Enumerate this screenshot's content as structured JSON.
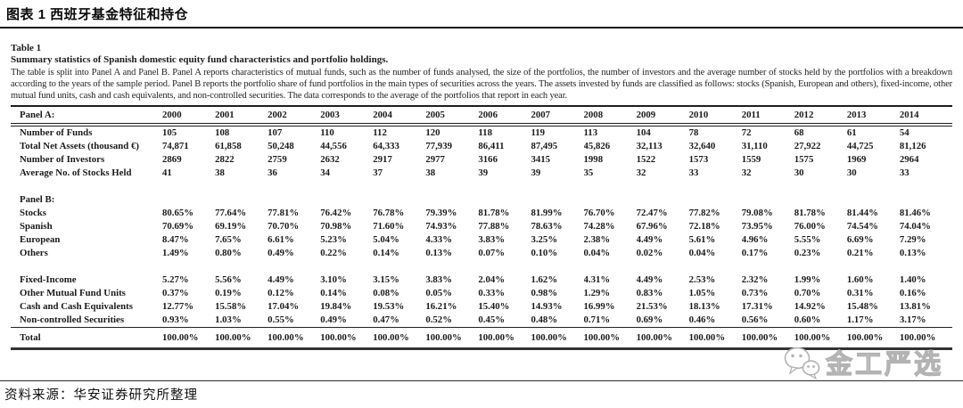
{
  "header": {
    "title": "图表 1 西班牙基金特征和持仓"
  },
  "table": {
    "label": "Table 1",
    "caption": "Summary statistics of Spanish domestic equity fund characteristics and portfolio holdings.",
    "description": "The table is split into Panel A and Panel B. Panel A reports characteristics of mutual funds, such as the number of funds analysed, the size of the portfolios, the number of investors and the average number of stocks held by the portfolios with a breakdown according to the years of the sample period. Panel B reports the portfolio share of fund portfolios in the main types of securities across the years. The assets invested by funds are classified as follows: stocks (Spanish, European and others), fixed-income, other mutual fund units, cash and cash equivalents, and non-controlled securities. The data corresponds to the average of the portfolios that report in each year.",
    "col_header": "Panel A:",
    "years": [
      "2000",
      "2001",
      "2002",
      "2003",
      "2004",
      "2005",
      "2006",
      "2007",
      "2008",
      "2009",
      "2010",
      "2011",
      "2012",
      "2013",
      "2014"
    ],
    "rows": [
      {
        "type": "data",
        "label": "Number of Funds",
        "values": [
          "105",
          "108",
          "107",
          "110",
          "112",
          "120",
          "118",
          "119",
          "113",
          "104",
          "78",
          "72",
          "68",
          "61",
          "54"
        ]
      },
      {
        "type": "data",
        "label": "Total Net Assets (thousand €)",
        "values": [
          "74,871",
          "61,858",
          "50,248",
          "44,556",
          "64,333",
          "77,939",
          "86,411",
          "87,495",
          "45,826",
          "32,113",
          "32,640",
          "31,110",
          "27,922",
          "44,725",
          "81,126"
        ]
      },
      {
        "type": "data",
        "label": "Number of Investors",
        "values": [
          "2869",
          "2822",
          "2759",
          "2632",
          "2917",
          "2977",
          "3166",
          "3415",
          "1998",
          "1522",
          "1573",
          "1559",
          "1575",
          "1969",
          "2964"
        ]
      },
      {
        "type": "data",
        "label": "Average No. of Stocks Held",
        "values": [
          "41",
          "38",
          "36",
          "34",
          "37",
          "38",
          "39",
          "39",
          "35",
          "32",
          "33",
          "32",
          "30",
          "30",
          "33"
        ]
      },
      {
        "type": "spacer"
      },
      {
        "type": "subheader",
        "label": "Panel B:"
      },
      {
        "type": "data",
        "label": "Stocks",
        "values": [
          "80.65%",
          "77.64%",
          "77.81%",
          "76.42%",
          "76.78%",
          "79.39%",
          "81.78%",
          "81.99%",
          "76.70%",
          "72.47%",
          "77.82%",
          "79.08%",
          "81.78%",
          "81.44%",
          "81.46%"
        ]
      },
      {
        "type": "data",
        "label": "Spanish",
        "values": [
          "70.69%",
          "69.19%",
          "70.70%",
          "70.98%",
          "71.60%",
          "74.93%",
          "77.88%",
          "78.63%",
          "74.28%",
          "67.96%",
          "72.18%",
          "73.95%",
          "76.00%",
          "74.54%",
          "74.04%"
        ]
      },
      {
        "type": "data",
        "label": "European",
        "values": [
          "8.47%",
          "7.65%",
          "6.61%",
          "5.23%",
          "5.04%",
          "4.33%",
          "3.83%",
          "3.25%",
          "2.38%",
          "4.49%",
          "5.61%",
          "4.96%",
          "5.55%",
          "6.69%",
          "7.29%"
        ]
      },
      {
        "type": "data",
        "label": "Others",
        "values": [
          "1.49%",
          "0.80%",
          "0.49%",
          "0.22%",
          "0.14%",
          "0.13%",
          "0.07%",
          "0.10%",
          "0.04%",
          "0.02%",
          "0.04%",
          "0.17%",
          "0.23%",
          "0.21%",
          "0.13%"
        ]
      },
      {
        "type": "spacer"
      },
      {
        "type": "data",
        "label": "Fixed-Income",
        "values": [
          "5.27%",
          "5.56%",
          "4.49%",
          "3.10%",
          "3.15%",
          "3.83%",
          "2.04%",
          "1.62%",
          "4.31%",
          "4.49%",
          "2.53%",
          "2.32%",
          "1.99%",
          "1.60%",
          "1.40%"
        ]
      },
      {
        "type": "data",
        "label": "Other Mutual Fund Units",
        "values": [
          "0.37%",
          "0.19%",
          "0.12%",
          "0.14%",
          "0.08%",
          "0.05%",
          "0.33%",
          "0.98%",
          "1.29%",
          "0.83%",
          "1.05%",
          "0.73%",
          "0.70%",
          "0.31%",
          "0.16%"
        ]
      },
      {
        "type": "data",
        "label": "Cash and Cash Equivalents",
        "values": [
          "12.77%",
          "15.58%",
          "17.04%",
          "19.84%",
          "19.53%",
          "16.21%",
          "15.40%",
          "14.93%",
          "16.99%",
          "21.53%",
          "18.13%",
          "17.31%",
          "14.92%",
          "15.48%",
          "13.81%"
        ]
      },
      {
        "type": "data",
        "label": "Non-controlled Securities",
        "values": [
          "0.93%",
          "1.03%",
          "0.55%",
          "0.49%",
          "0.47%",
          "0.52%",
          "0.45%",
          "0.48%",
          "0.71%",
          "0.69%",
          "0.46%",
          "0.56%",
          "0.60%",
          "1.17%",
          "3.17%"
        ]
      },
      {
        "type": "total",
        "label": "Total",
        "values": [
          "100.00%",
          "100.00%",
          "100.00%",
          "100.00%",
          "100.00%",
          "100.00%",
          "100.00%",
          "100.00%",
          "100.00%",
          "100.00%",
          "100.00%",
          "100.00%",
          "100.00%",
          "100.00%",
          "100.00%"
        ]
      }
    ]
  },
  "footer": {
    "source_label": "资料来源：",
    "source_text": "华安证券研究所整理"
  },
  "watermark": {
    "icon": "wechat-icon",
    "text": "金工严选",
    "outline_color": "#b3b3b3"
  },
  "colors": {
    "text": "#1b1b1b",
    "rule": "#1d1d1d",
    "background": "#ffffff"
  }
}
